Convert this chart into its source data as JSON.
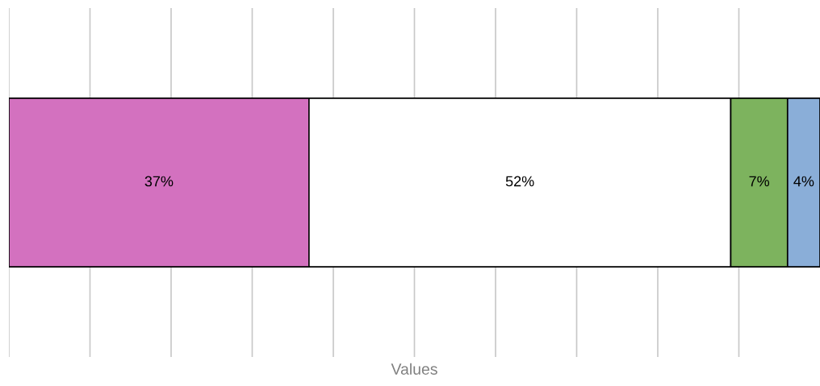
{
  "chart_data": {
    "type": "bar",
    "orientation": "horizontal",
    "stacked": true,
    "xlabel": "Values",
    "categories": [
      null
    ],
    "series": [
      {
        "color": "#d371bf",
        "values": [
          37
        ],
        "value_labels": [
          "37%"
        ]
      },
      {
        "color": "#ffffff",
        "values": [
          52
        ],
        "value_labels": [
          "52%"
        ]
      },
      {
        "color": "#7db35e",
        "values": [
          7
        ],
        "value_labels": [
          "7%"
        ]
      },
      {
        "color": "#8aaed8",
        "values": [
          4
        ],
        "value_labels": [
          "4%"
        ]
      }
    ],
    "xlim": [
      0,
      100
    ],
    "xticks": [
      {
        "value": 0,
        "label": null
      },
      {
        "value": 10,
        "label": null
      },
      {
        "value": 20,
        "label": null
      },
      {
        "value": 30,
        "label": null
      },
      {
        "value": 40,
        "label": null
      },
      {
        "value": 50,
        "label": null
      },
      {
        "value": 60,
        "label": null
      },
      {
        "value": 70,
        "label": null
      },
      {
        "value": 80,
        "label": null
      },
      {
        "value": 90,
        "label": null
      }
    ],
    "grid": "x",
    "legend": false
  }
}
